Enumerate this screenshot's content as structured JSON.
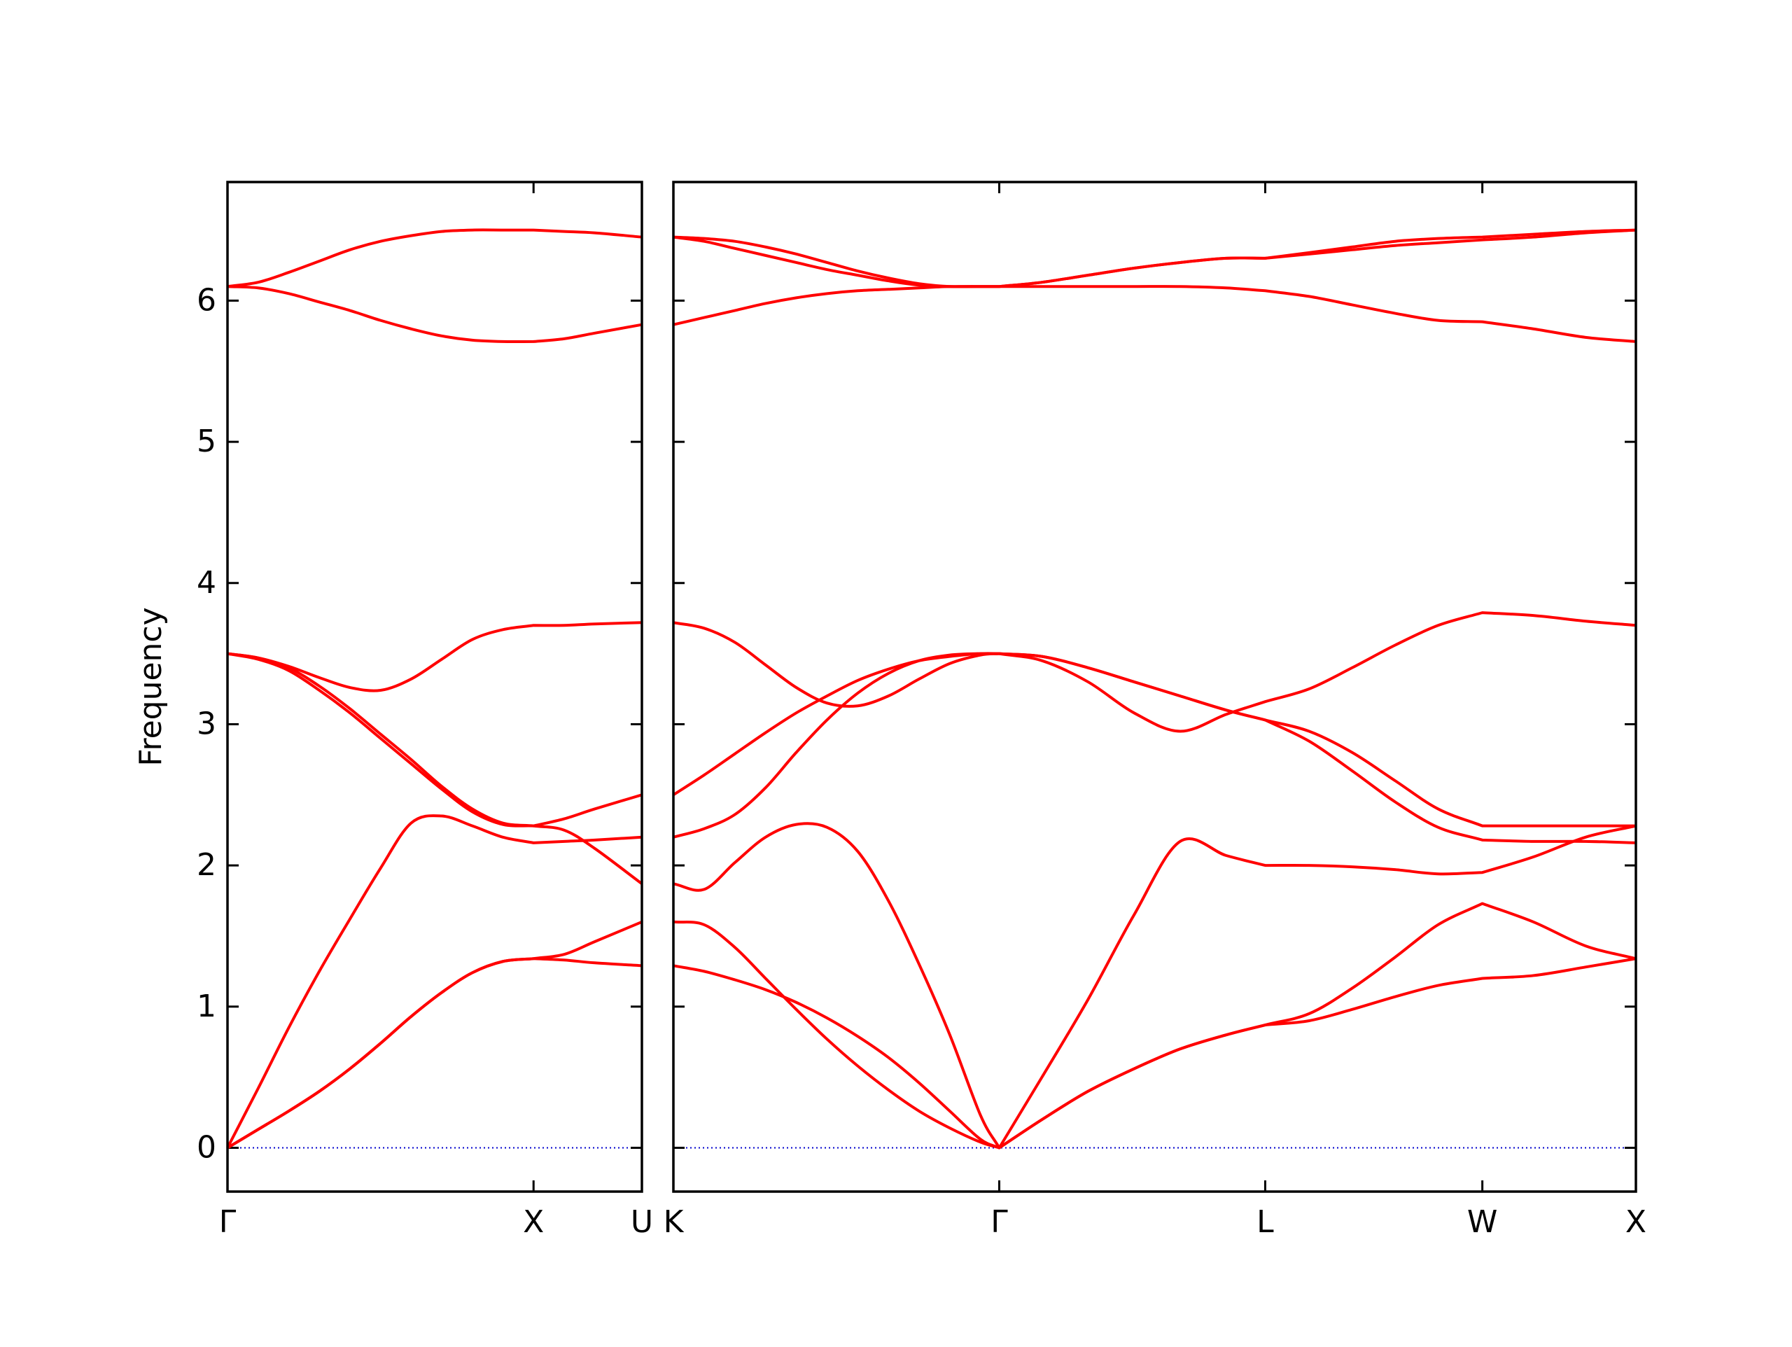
{
  "chart_data": [
    {
      "type": "line",
      "ylabel": "Frequency",
      "x": [
        0,
        0.1,
        0.2,
        0.3,
        0.4,
        0.5,
        0.6,
        0.7,
        0.8,
        0.9,
        1.0,
        1.1,
        1.2,
        1.354
      ],
      "xlim": [
        0,
        1.354
      ],
      "xticks": [
        {
          "value": 0,
          "label": "Γ"
        },
        {
          "value": 1,
          "label": "X"
        },
        {
          "value": 1.354,
          "label": "U"
        }
      ],
      "ylim": [
        -0.31,
        6.84
      ],
      "yticks": [
        0,
        1,
        2,
        3,
        4,
        5,
        6
      ],
      "ytick_labels": true,
      "series": [
        {
          "color": "#ff0000",
          "values": [
            0,
            0.13,
            0.26,
            0.4,
            0.56,
            0.74,
            0.93,
            1.1,
            1.24,
            1.32,
            1.34,
            1.33,
            1.31,
            1.29
          ]
        },
        {
          "color": "#ff0000",
          "values": [
            0,
            0.13,
            0.26,
            0.4,
            0.56,
            0.74,
            0.93,
            1.1,
            1.24,
            1.32,
            1.34,
            1.37,
            1.46,
            1.6
          ]
        },
        {
          "color": "#ff0000",
          "values": [
            0,
            0.42,
            0.85,
            1.25,
            1.62,
            1.98,
            2.3,
            2.35,
            2.28,
            2.2,
            2.16,
            2.17,
            2.18,
            2.2
          ]
        },
        {
          "color": "#ff0000",
          "values": [
            3.5,
            3.46,
            3.38,
            3.24,
            3.08,
            2.9,
            2.72,
            2.54,
            2.38,
            2.29,
            2.28,
            2.25,
            2.12,
            1.87
          ]
        },
        {
          "color": "#ff0000",
          "values": [
            3.5,
            3.47,
            3.4,
            3.27,
            3.11,
            2.93,
            2.75,
            2.56,
            2.4,
            2.3,
            2.28,
            2.33,
            2.4,
            2.5
          ]
        },
        {
          "color": "#ff0000",
          "values": [
            3.5,
            3.47,
            3.41,
            3.33,
            3.26,
            3.24,
            3.32,
            3.46,
            3.6,
            3.67,
            3.7,
            3.7,
            3.71,
            3.72
          ]
        },
        {
          "color": "#ff0000",
          "values": [
            6.1,
            6.13,
            6.2,
            6.28,
            6.36,
            6.42,
            6.46,
            6.49,
            6.5,
            6.5,
            6.5,
            6.49,
            6.48,
            6.45
          ]
        },
        {
          "color": "#ff0000",
          "values": [
            6.1,
            6.09,
            6.05,
            5.99,
            5.93,
            5.86,
            5.8,
            5.75,
            5.72,
            5.71,
            5.71,
            5.73,
            5.77,
            5.83
          ]
        }
      ]
    },
    {
      "type": "line",
      "x": [
        0,
        0.1,
        0.2,
        0.3,
        0.4,
        0.5,
        0.6,
        0.7,
        0.8,
        0.9,
        1.0,
        1.061,
        1.2,
        1.35,
        1.5,
        1.65,
        1.8,
        1.927,
        2.07,
        2.21,
        2.35,
        2.49,
        2.634,
        2.8,
        2.97,
        3.134
      ],
      "xlim": [
        0,
        3.134
      ],
      "xticks": [
        {
          "value": 0,
          "label": "K"
        },
        {
          "value": 1.061,
          "label": "Γ"
        },
        {
          "value": 1.927,
          "label": "L"
        },
        {
          "value": 2.634,
          "label": "W"
        },
        {
          "value": 3.134,
          "label": "X"
        }
      ],
      "ylim": [
        -0.31,
        6.84
      ],
      "yticks": [
        0,
        1,
        2,
        3,
        4,
        5,
        6
      ],
      "ytick_labels": false,
      "series": [
        {
          "color": "#ff0000",
          "values": [
            1.29,
            1.25,
            1.19,
            1.12,
            1.03,
            0.92,
            0.79,
            0.64,
            0.46,
            0.26,
            0.06,
            0,
            0.2,
            0.4,
            0.56,
            0.7,
            0.8,
            0.87,
            0.9,
            0.98,
            1.07,
            1.15,
            1.2,
            1.22,
            1.28,
            1.34
          ]
        },
        {
          "color": "#ff0000",
          "values": [
            1.6,
            1.58,
            1.42,
            1.2,
            0.98,
            0.77,
            0.58,
            0.41,
            0.26,
            0.14,
            0.04,
            0,
            0.2,
            0.4,
            0.56,
            0.7,
            0.8,
            0.87,
            0.95,
            1.13,
            1.35,
            1.58,
            1.73,
            1.6,
            1.43,
            1.34
          ]
        },
        {
          "color": "#ff0000",
          "values": [
            1.87,
            1.83,
            2.02,
            2.2,
            2.29,
            2.27,
            2.1,
            1.75,
            1.3,
            0.8,
            0.23,
            0,
            0.5,
            1.05,
            1.65,
            2.17,
            2.07,
            2.0,
            2.0,
            1.99,
            1.97,
            1.94,
            1.95,
            2.06,
            2.2,
            2.28
          ]
        },
        {
          "color": "#ff0000",
          "values": [
            2.2,
            2.26,
            2.36,
            2.55,
            2.8,
            3.03,
            3.22,
            3.36,
            3.45,
            3.49,
            3.5,
            3.5,
            3.48,
            3.4,
            3.3,
            3.2,
            3.1,
            3.03,
            2.95,
            2.8,
            2.6,
            2.4,
            2.28,
            2.28,
            2.28,
            2.28
          ]
        },
        {
          "color": "#ff0000",
          "values": [
            2.5,
            2.64,
            2.79,
            2.94,
            3.08,
            3.2,
            3.31,
            3.39,
            3.45,
            3.48,
            3.5,
            3.5,
            3.45,
            3.3,
            3.08,
            2.95,
            3.07,
            3.16,
            3.25,
            3.4,
            3.56,
            3.7,
            3.79,
            3.77,
            3.73,
            3.7
          ]
        },
        {
          "color": "#ff0000",
          "values": [
            3.72,
            3.68,
            3.58,
            3.42,
            3.26,
            3.15,
            3.13,
            3.2,
            3.32,
            3.43,
            3.49,
            3.5,
            3.48,
            3.4,
            3.3,
            3.2,
            3.1,
            3.03,
            2.88,
            2.67,
            2.45,
            2.27,
            2.18,
            2.17,
            2.17,
            2.16
          ]
        },
        {
          "color": "#ff0000",
          "values": [
            6.45,
            6.44,
            6.42,
            6.38,
            6.33,
            6.27,
            6.21,
            6.16,
            6.12,
            6.1,
            6.1,
            6.1,
            6.13,
            6.18,
            6.23,
            6.27,
            6.3,
            6.3,
            6.34,
            6.38,
            6.42,
            6.44,
            6.45,
            6.47,
            6.49,
            6.5
          ]
        },
        {
          "color": "#ff0000",
          "values": [
            6.45,
            6.42,
            6.37,
            6.32,
            6.27,
            6.22,
            6.18,
            6.14,
            6.11,
            6.1,
            6.1,
            6.1,
            6.13,
            6.18,
            6.23,
            6.27,
            6.3,
            6.3,
            6.33,
            6.36,
            6.39,
            6.41,
            6.43,
            6.45,
            6.48,
            6.5
          ]
        },
        {
          "color": "#ff0000",
          "values": [
            5.83,
            5.88,
            5.93,
            5.98,
            6.02,
            6.05,
            6.07,
            6.08,
            6.09,
            6.1,
            6.1,
            6.1,
            6.1,
            6.1,
            6.1,
            6.1,
            6.09,
            6.07,
            6.03,
            5.97,
            5.91,
            5.86,
            5.85,
            5.8,
            5.74,
            5.71
          ]
        }
      ]
    }
  ]
}
